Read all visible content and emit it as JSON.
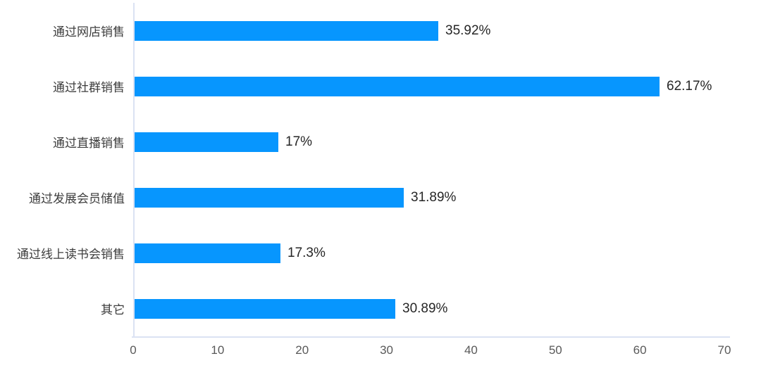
{
  "chart_data": {
    "type": "bar",
    "orientation": "horizontal",
    "title": "",
    "xlabel": "",
    "ylabel": "",
    "categories": [
      "通过网店销售",
      "通过社群销售",
      "通过直播销售",
      "通过发展会员储值",
      "通过线上读书会销售",
      "其它"
    ],
    "values": [
      35.92,
      62.17,
      17,
      31.89,
      17.3,
      30.89
    ],
    "value_labels": [
      "35.92%",
      "62.17%",
      "17%",
      "31.89%",
      "17.3%",
      "30.89%"
    ],
    "xlim": [
      0,
      70
    ],
    "xticks": [
      0,
      10,
      20,
      30,
      40,
      50,
      60,
      70
    ],
    "grid": false,
    "legend": false,
    "bar_color": "#0796fe",
    "axis_line_color": "#dbe2f3",
    "category_label_color": "#3d3d3d",
    "value_label_color": "#262626",
    "tick_label_color": "#595959"
  }
}
